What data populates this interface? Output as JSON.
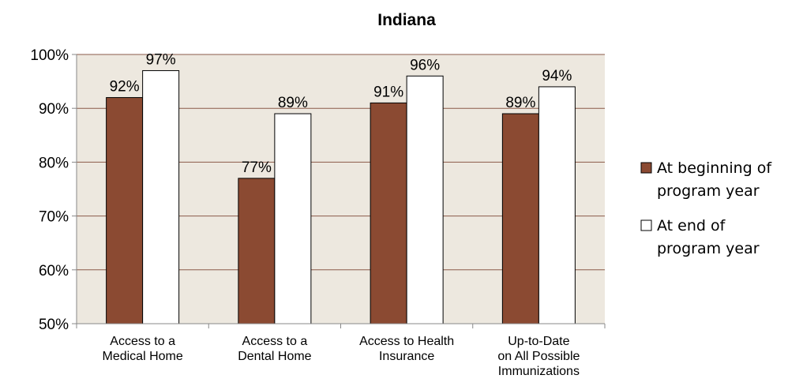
{
  "chart_data": {
    "type": "bar",
    "title": "Indiana",
    "categories": [
      [
        "Access to a",
        "Medical Home"
      ],
      [
        "Access to a",
        "Dental Home"
      ],
      [
        "Access to Health",
        "Insurance"
      ],
      [
        "Up-to-Date",
        "on All Possible",
        "Immunizations"
      ]
    ],
    "series": [
      {
        "name": [
          "At beginning of",
          "program year"
        ],
        "values": [
          92,
          77,
          91,
          89
        ],
        "labels": [
          "92%",
          "77%",
          "91%",
          "89%"
        ],
        "color": "#8b4a32"
      },
      {
        "name": [
          "At end of",
          "program year"
        ],
        "values": [
          97,
          89,
          96,
          94
        ],
        "labels": [
          "97%",
          "89%",
          "96%",
          "94%"
        ],
        "color": "#ffffff"
      }
    ],
    "ylim": [
      50,
      100
    ],
    "yticks": [
      50,
      60,
      70,
      80,
      90,
      100
    ],
    "ytick_labels": [
      "50%",
      "60%",
      "70%",
      "80%",
      "90%",
      "100%"
    ],
    "grid": true,
    "plot_background": "#ede8df",
    "legend": "right"
  }
}
